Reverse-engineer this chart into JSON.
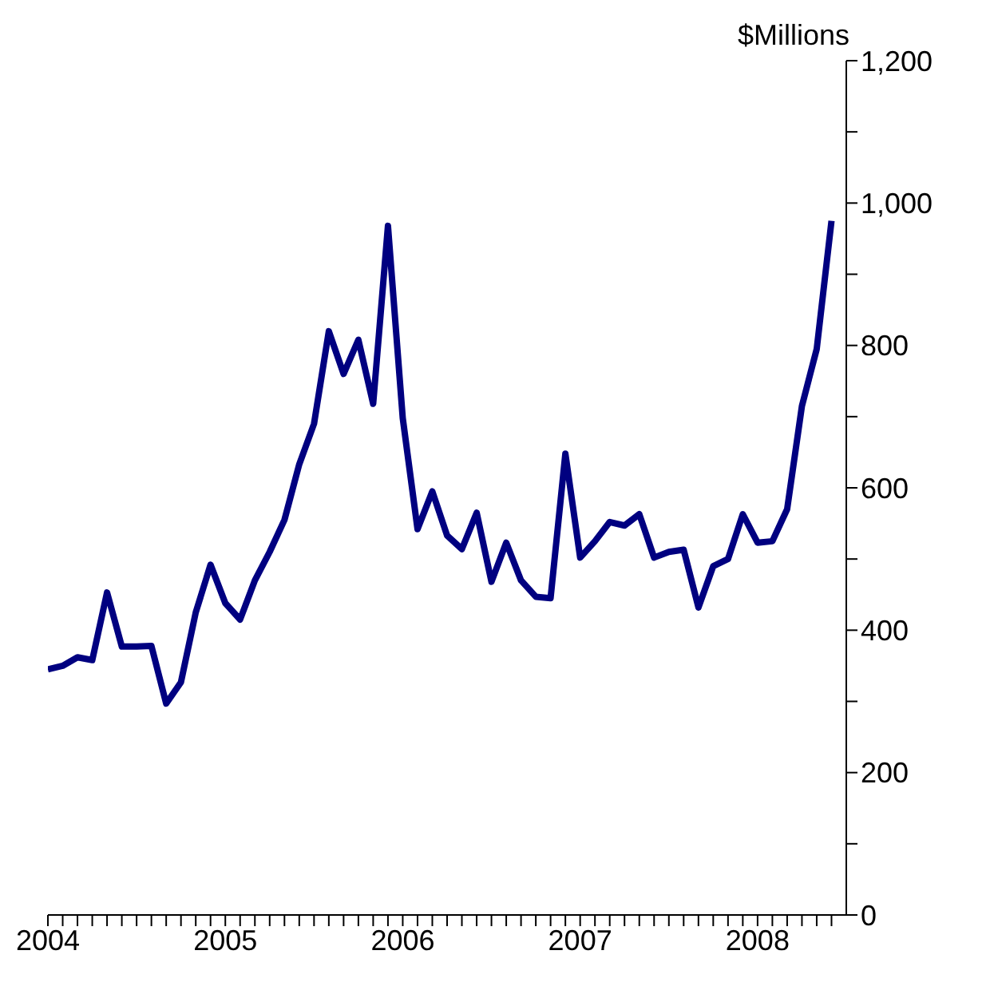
{
  "chart_data": {
    "type": "line",
    "ylabel": "$Millions",
    "x": [
      "2004-01",
      "2004-02",
      "2004-03",
      "2004-04",
      "2004-05",
      "2004-06",
      "2004-07",
      "2004-08",
      "2004-09",
      "2004-10",
      "2004-11",
      "2004-12",
      "2005-01",
      "2005-02",
      "2005-03",
      "2005-04",
      "2005-05",
      "2005-06",
      "2005-07",
      "2005-08",
      "2005-09",
      "2005-10",
      "2005-11",
      "2005-12",
      "2006-01",
      "2006-02",
      "2006-03",
      "2006-04",
      "2006-05",
      "2006-06",
      "2006-07",
      "2006-08",
      "2006-09",
      "2006-10",
      "2006-11",
      "2006-12",
      "2007-01",
      "2007-02",
      "2007-03",
      "2007-04",
      "2007-05",
      "2007-06",
      "2007-07",
      "2007-08",
      "2007-09",
      "2007-10",
      "2007-11",
      "2007-12",
      "2008-01",
      "2008-02",
      "2008-03",
      "2008-04",
      "2008-05",
      "2008-06"
    ],
    "series": [
      {
        "color": "#000080",
        "values": [
          345,
          350,
          362,
          358,
          453,
          377,
          377,
          378,
          297,
          327,
          425,
          492,
          438,
          415,
          470,
          510,
          555,
          633,
          690,
          820,
          760,
          808,
          718,
          968,
          698,
          542,
          595,
          533,
          514,
          565,
          468,
          523,
          470,
          447,
          445,
          648,
          502,
          525,
          552,
          547,
          563,
          502,
          510,
          513,
          432,
          490,
          500,
          563,
          523,
          525,
          570,
          715,
          795,
          975
        ]
      }
    ],
    "xlim": [
      "2004-01",
      "2008-07"
    ],
    "xticks": [
      {
        "value": "2004-01",
        "label": "2004"
      },
      {
        "value": "2004-02",
        "label": null
      },
      {
        "value": "2004-03",
        "label": null
      },
      {
        "value": "2004-04",
        "label": null
      },
      {
        "value": "2004-05",
        "label": null
      },
      {
        "value": "2004-06",
        "label": null
      },
      {
        "value": "2004-07",
        "label": null
      },
      {
        "value": "2004-08",
        "label": null
      },
      {
        "value": "2004-09",
        "label": null
      },
      {
        "value": "2004-10",
        "label": null
      },
      {
        "value": "2004-11",
        "label": null
      },
      {
        "value": "2004-12",
        "label": null
      },
      {
        "value": "2005-01",
        "label": "2005"
      },
      {
        "value": "2005-02",
        "label": null
      },
      {
        "value": "2005-03",
        "label": null
      },
      {
        "value": "2005-04",
        "label": null
      },
      {
        "value": "2005-05",
        "label": null
      },
      {
        "value": "2005-06",
        "label": null
      },
      {
        "value": "2005-07",
        "label": null
      },
      {
        "value": "2005-08",
        "label": null
      },
      {
        "value": "2005-09",
        "label": null
      },
      {
        "value": "2005-10",
        "label": null
      },
      {
        "value": "2005-11",
        "label": null
      },
      {
        "value": "2005-12",
        "label": null
      },
      {
        "value": "2006-01",
        "label": "2006"
      },
      {
        "value": "2006-02",
        "label": null
      },
      {
        "value": "2006-03",
        "label": null
      },
      {
        "value": "2006-04",
        "label": null
      },
      {
        "value": "2006-05",
        "label": null
      },
      {
        "value": "2006-06",
        "label": null
      },
      {
        "value": "2006-07",
        "label": null
      },
      {
        "value": "2006-08",
        "label": null
      },
      {
        "value": "2006-09",
        "label": null
      },
      {
        "value": "2006-10",
        "label": null
      },
      {
        "value": "2006-11",
        "label": null
      },
      {
        "value": "2006-12",
        "label": null
      },
      {
        "value": "2007-01",
        "label": "2007"
      },
      {
        "value": "2007-02",
        "label": null
      },
      {
        "value": "2007-03",
        "label": null
      },
      {
        "value": "2007-04",
        "label": null
      },
      {
        "value": "2007-05",
        "label": null
      },
      {
        "value": "2007-06",
        "label": null
      },
      {
        "value": "2007-07",
        "label": null
      },
      {
        "value": "2007-08",
        "label": null
      },
      {
        "value": "2007-09",
        "label": null
      },
      {
        "value": "2007-10",
        "label": null
      },
      {
        "value": "2007-11",
        "label": null
      },
      {
        "value": "2007-12",
        "label": null
      },
      {
        "value": "2008-01",
        "label": "2008"
      },
      {
        "value": "2008-02",
        "label": null
      },
      {
        "value": "2008-03",
        "label": null
      },
      {
        "value": "2008-04",
        "label": null
      },
      {
        "value": "2008-05",
        "label": null
      },
      {
        "value": "2008-06",
        "label": null
      }
    ],
    "ylim": [
      0,
      1200
    ],
    "yticks": [
      0,
      {
        "value": 100,
        "label": null
      },
      200,
      {
        "value": 300,
        "label": null
      },
      400,
      {
        "value": 500,
        "label": null
      },
      600,
      {
        "value": 700,
        "label": null
      },
      800,
      {
        "value": 900,
        "label": null
      },
      {
        "value": 1000,
        "label": "1,000"
      },
      {
        "value": 1100,
        "label": null
      },
      {
        "value": 1200,
        "label": "1,200"
      }
    ],
    "grid": false,
    "legend": false,
    "marker": "none",
    "line_style": "solid"
  }
}
